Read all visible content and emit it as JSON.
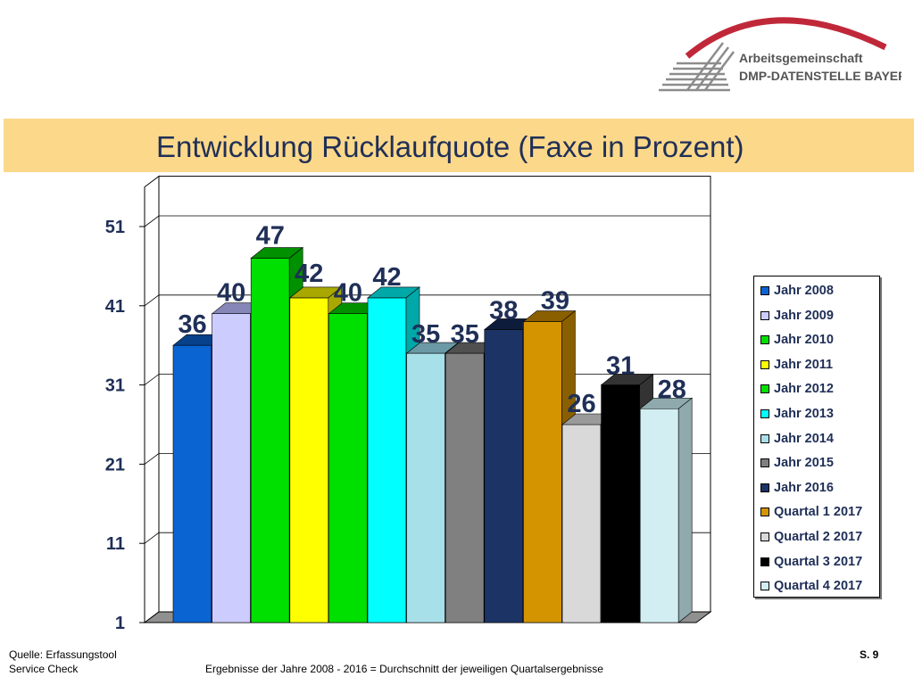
{
  "logo": {
    "line1": "Arbeitsgemeinschaft",
    "line2": "DMP-DATENSTELLE BAYERN"
  },
  "title": "Entwicklung Rücklaufquote (Faxe in Prozent)",
  "footer": {
    "source_line1": "Quelle: Erfassungstool",
    "source_line2": "Service Check",
    "note": "Ergebnisse der Jahre 2008 - 2016  = Durchschnitt der jeweiligen Quartalsergebnisse",
    "page": "S. 9"
  },
  "chart_data": {
    "type": "bar",
    "title": "Entwicklung Rücklaufquote (Faxe in Prozent)",
    "xlabel": "",
    "ylabel": "",
    "ylim": [
      1,
      56
    ],
    "yticks": [
      1,
      11,
      21,
      31,
      41,
      51
    ],
    "grid": "horizontal",
    "legend": "right",
    "series": [
      {
        "name": "Jahr 2008",
        "value": 36,
        "label": "36",
        "color": "#0a64d2",
        "sideColor": "#06418a"
      },
      {
        "name": "Jahr 2009",
        "value": 40,
        "label": "40",
        "color": "#ccccff",
        "sideColor": "#8686b8"
      },
      {
        "name": "Jahr 2010",
        "value": 47,
        "label": "47",
        "color": "#00e000",
        "sideColor": "#009000"
      },
      {
        "name": "Jahr 2011",
        "value": 42,
        "label": "42",
        "color": "#ffff00",
        "sideColor": "#a8a800"
      },
      {
        "name": "Jahr 2012",
        "value": 40,
        "label": "40",
        "color": "#00e000",
        "sideColor": "#009000"
      },
      {
        "name": "Jahr 2013",
        "value": 42,
        "label": "42",
        "color": "#00ffff",
        "sideColor": "#00a8a8"
      },
      {
        "name": "Jahr 2014",
        "value": 35,
        "label": "35",
        "color": "#a8e0ea",
        "sideColor": "#6b9aa6"
      },
      {
        "name": "Jahr 2015",
        "value": 35,
        "label": "35",
        "color": "#808080",
        "sideColor": "#505050"
      },
      {
        "name": "Jahr 2016",
        "value": 38,
        "label": "38",
        "color": "#1c3366",
        "sideColor": "#0e1c3c"
      },
      {
        "name": "Quartal 1 2017",
        "value": 39,
        "label": "39",
        "color": "#d49400",
        "sideColor": "#8a5f00"
      },
      {
        "name": "Quartal 2 2017",
        "value": 26,
        "label": "26",
        "color": "#d9d9d9",
        "sideColor": "#9a9a9a"
      },
      {
        "name": "Quartal 3 2017",
        "value": 31,
        "label": "31",
        "color": "#000000",
        "sideColor": "#333333"
      },
      {
        "name": "Quartal 4 2017",
        "value": 28,
        "label": "28",
        "color": "#d2eef2",
        "sideColor": "#8fa9ad"
      }
    ]
  },
  "colors": {
    "title_band": "#fcd88a",
    "title_text": "#1f2f57",
    "logo_red": "#c0283a",
    "logo_gray": "#8c8c8c"
  }
}
